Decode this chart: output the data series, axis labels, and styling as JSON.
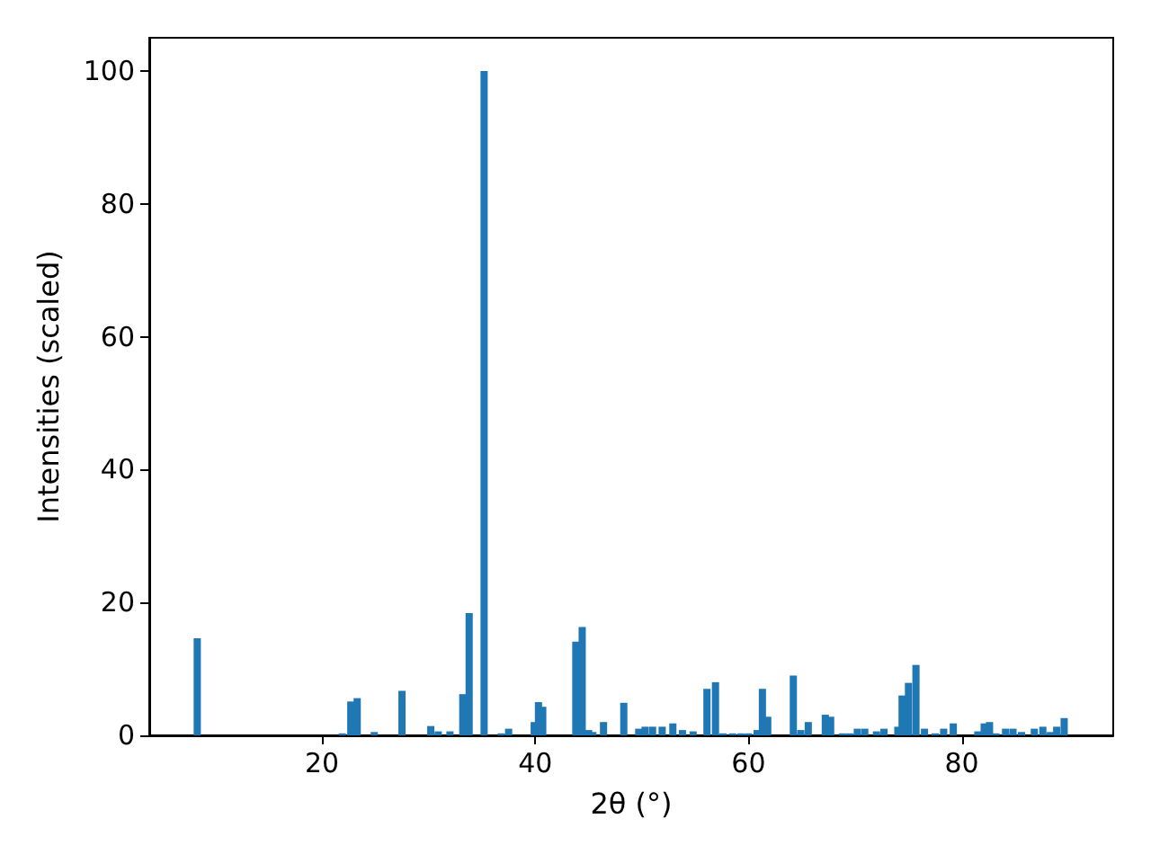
{
  "chart_data": {
    "type": "bar",
    "xlabel": "2θ (°)",
    "ylabel": "Intensities (scaled)",
    "x": [
      8.3,
      21.9,
      22.7,
      23.3,
      24.9,
      27.5,
      30.2,
      30.9,
      32.0,
      33.2,
      33.8,
      35.2,
      36.8,
      37.5,
      39.9,
      40.3,
      40.7,
      43.8,
      44.4,
      45.0,
      45.4,
      46.4,
      48.3,
      49.7,
      50.3,
      51.0,
      51.9,
      52.9,
      53.8,
      54.8,
      56.1,
      56.9,
      57.6,
      58.5,
      59.3,
      60.0,
      60.8,
      61.3,
      61.8,
      64.2,
      64.9,
      65.6,
      67.2,
      67.7,
      68.8,
      69.5,
      70.2,
      70.9,
      72.0,
      72.7,
      74.0,
      74.4,
      75.0,
      75.7,
      76.5,
      77.5,
      78.3,
      79.2,
      81.5,
      82.1,
      82.6,
      83.2,
      84.1,
      84.8,
      85.6,
      86.8,
      87.6,
      88.3,
      88.9,
      89.6
    ],
    "series": [
      {
        "color": "#1f77b4",
        "values": [
          14.6,
          0.3,
          5.1,
          5.6,
          0.5,
          6.7,
          1.4,
          0.6,
          0.6,
          6.2,
          18.4,
          100,
          0.3,
          1.0,
          2.0,
          5.0,
          4.3,
          14.1,
          16.3,
          0.8,
          0.5,
          2.0,
          4.9,
          1.0,
          1.3,
          1.3,
          1.3,
          1.8,
          0.8,
          0.6,
          7.0,
          8.0,
          0.3,
          0.3,
          0.3,
          0.3,
          0.8,
          7.0,
          2.8,
          9.0,
          0.8,
          2.0,
          3.1,
          2.8,
          0.3,
          0.3,
          1.0,
          1.0,
          0.6,
          1.0,
          1.3,
          6.0,
          7.9,
          10.6,
          1.0,
          0.3,
          1.0,
          1.8,
          0.6,
          1.8,
          2.0,
          0.3,
          1.0,
          1.0,
          0.5,
          1.0,
          1.3,
          0.5,
          1.3,
          2.6
        ]
      }
    ],
    "xlim": [
      3.8,
      94.2
    ],
    "xticks": [
      20,
      40,
      60,
      80
    ],
    "ylim": [
      0,
      105
    ],
    "yticks": [
      0,
      20,
      40,
      60,
      80,
      100
    ],
    "grid": false
  }
}
